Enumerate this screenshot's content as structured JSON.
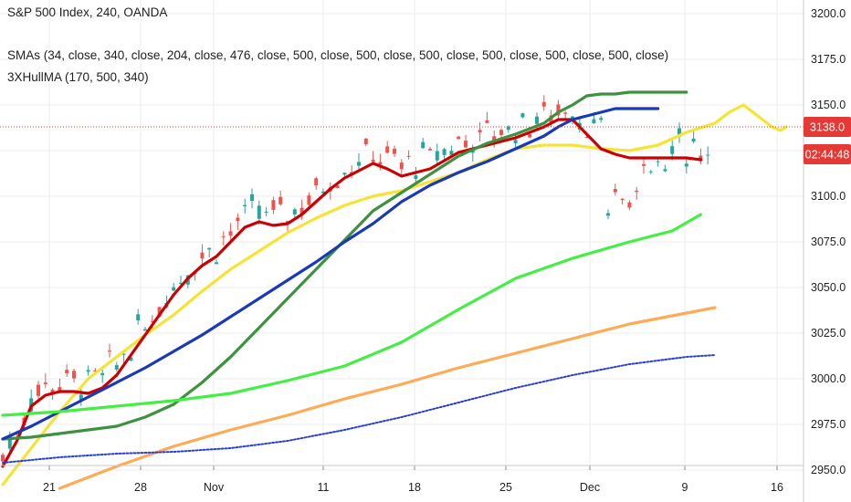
{
  "chart_data": {
    "type": "line",
    "title": "S&P 500 Index, 240, OANDA",
    "indicators": [
      "SMAs (34, close, 340, close, 204, close, 476, close, 500, close, 500, close, 500, close, 500, close, 500, close, 500, close)",
      "3XHullMA (170, 500, 340)"
    ],
    "ylim": [
      2950,
      3210
    ],
    "y_ticks": [
      "3200.0",
      "3175.0",
      "3150.0",
      "3125.0",
      "3100.0",
      "3075.0",
      "3050.0",
      "3025.0",
      "3000.0",
      "2975.0",
      "2950.0"
    ],
    "x_ticks": [
      "21",
      "28",
      "Nov",
      "11",
      "18",
      "25",
      "Dec",
      "9",
      "16"
    ],
    "last_price": "3138.0",
    "countdown": "02:44:48",
    "grid": true,
    "legend_position": "top-left",
    "colors": {
      "price_tag": "#e53935",
      "countdown_tag": "#e53935",
      "candle_up": "#26a69a",
      "candle_down": "#ef5350"
    },
    "series": [
      {
        "color": "#f5e335",
        "points": [
          [
            0,
            2942
          ],
          [
            20,
            2962
          ],
          [
            40,
            2982
          ],
          [
            60,
            3000
          ],
          [
            80,
            3012
          ],
          [
            100,
            3024
          ],
          [
            120,
            3035
          ],
          [
            140,
            3048
          ],
          [
            160,
            3060
          ],
          [
            180,
            3070
          ],
          [
            200,
            3080
          ],
          [
            220,
            3088
          ],
          [
            240,
            3095
          ],
          [
            260,
            3100
          ],
          [
            280,
            3103
          ],
          [
            300,
            3108
          ],
          [
            320,
            3113
          ],
          [
            340,
            3120
          ],
          [
            360,
            3126
          ],
          [
            380,
            3128
          ],
          [
            400,
            3128
          ],
          [
            420,
            3126
          ],
          [
            440,
            3125
          ],
          [
            460,
            3128
          ],
          [
            480,
            3135
          ],
          [
            500,
            3140
          ],
          [
            510,
            3146
          ],
          [
            520,
            3150
          ],
          [
            530,
            3144
          ],
          [
            540,
            3138
          ],
          [
            546,
            3136
          ],
          [
            550,
            3138
          ]
        ]
      },
      {
        "color": "#cc0000",
        "points": [
          [
            0,
            2952
          ],
          [
            10,
            2966
          ],
          [
            20,
            2985
          ],
          [
            30,
            2991
          ],
          [
            40,
            2993
          ],
          [
            50,
            2993
          ],
          [
            60,
            2992
          ],
          [
            70,
            2995
          ],
          [
            80,
            3002
          ],
          [
            90,
            3013
          ],
          [
            100,
            3024
          ],
          [
            110,
            3035
          ],
          [
            120,
            3046
          ],
          [
            130,
            3055
          ],
          [
            140,
            3062
          ],
          [
            150,
            3067
          ],
          [
            160,
            3075
          ],
          [
            170,
            3083
          ],
          [
            180,
            3086
          ],
          [
            190,
            3084
          ],
          [
            200,
            3085
          ],
          [
            210,
            3090
          ],
          [
            220,
            3097
          ],
          [
            230,
            3104
          ],
          [
            240,
            3110
          ],
          [
            250,
            3114
          ],
          [
            260,
            3118
          ],
          [
            270,
            3115
          ],
          [
            280,
            3111
          ],
          [
            290,
            3113
          ],
          [
            300,
            3115
          ],
          [
            320,
            3124
          ],
          [
            340,
            3128
          ],
          [
            360,
            3132
          ],
          [
            380,
            3138
          ],
          [
            390,
            3142
          ],
          [
            400,
            3142
          ],
          [
            410,
            3134
          ],
          [
            420,
            3126
          ],
          [
            430,
            3123
          ],
          [
            440,
            3121
          ],
          [
            450,
            3121
          ],
          [
            460,
            3121
          ],
          [
            470,
            3121
          ],
          [
            480,
            3121
          ],
          [
            490,
            3120
          ]
        ]
      },
      {
        "color": "#3d9140",
        "points": [
          [
            0,
            2967
          ],
          [
            20,
            2968
          ],
          [
            40,
            2970
          ],
          [
            60,
            2972
          ],
          [
            80,
            2974
          ],
          [
            100,
            2979
          ],
          [
            120,
            2986
          ],
          [
            140,
            2998
          ],
          [
            160,
            3012
          ],
          [
            180,
            3028
          ],
          [
            200,
            3044
          ],
          [
            220,
            3060
          ],
          [
            240,
            3076
          ],
          [
            260,
            3092
          ],
          [
            280,
            3102
          ],
          [
            300,
            3112
          ],
          [
            320,
            3122
          ],
          [
            340,
            3129
          ],
          [
            360,
            3134
          ],
          [
            380,
            3140
          ],
          [
            390,
            3146
          ],
          [
            400,
            3150
          ],
          [
            410,
            3155
          ],
          [
            420,
            3156
          ],
          [
            430,
            3156
          ],
          [
            440,
            3157
          ],
          [
            450,
            3157
          ],
          [
            460,
            3157
          ],
          [
            470,
            3157
          ],
          [
            480,
            3157
          ]
        ]
      },
      {
        "color": "#1939b7",
        "points": [
          [
            0,
            2967
          ],
          [
            20,
            2974
          ],
          [
            40,
            2982
          ],
          [
            60,
            2990
          ],
          [
            80,
            2998
          ],
          [
            100,
            3006
          ],
          [
            120,
            3015
          ],
          [
            140,
            3024
          ],
          [
            160,
            3034
          ],
          [
            180,
            3044
          ],
          [
            200,
            3054
          ],
          [
            220,
            3064
          ],
          [
            240,
            3075
          ],
          [
            260,
            3085
          ],
          [
            280,
            3097
          ],
          [
            300,
            3106
          ],
          [
            320,
            3113
          ],
          [
            340,
            3119
          ],
          [
            360,
            3126
          ],
          [
            380,
            3133
          ],
          [
            390,
            3138
          ],
          [
            400,
            3142
          ],
          [
            410,
            3144
          ],
          [
            420,
            3146
          ],
          [
            430,
            3148
          ],
          [
            440,
            3148
          ],
          [
            450,
            3148
          ],
          [
            460,
            3148
          ]
        ]
      },
      {
        "color": "#44ee44",
        "points": [
          [
            0,
            2980
          ],
          [
            40,
            2982
          ],
          [
            80,
            2985
          ],
          [
            120,
            2988
          ],
          [
            160,
            2992
          ],
          [
            200,
            2999
          ],
          [
            240,
            3007
          ],
          [
            280,
            3020
          ],
          [
            320,
            3038
          ],
          [
            360,
            3055
          ],
          [
            400,
            3066
          ],
          [
            440,
            3075
          ],
          [
            470,
            3081
          ],
          [
            490,
            3090
          ]
        ]
      },
      {
        "color": "#ffaa55",
        "points": [
          [
            40,
            2940
          ],
          [
            80,
            2952
          ],
          [
            120,
            2963
          ],
          [
            160,
            2972
          ],
          [
            200,
            2980
          ],
          [
            240,
            2989
          ],
          [
            280,
            2997
          ],
          [
            320,
            3006
          ],
          [
            360,
            3014
          ],
          [
            400,
            3022
          ],
          [
            440,
            3030
          ],
          [
            480,
            3036
          ],
          [
            500,
            3039
          ]
        ]
      },
      {
        "color": "#2b3fd0",
        "points": [
          [
            0,
            2954
          ],
          [
            40,
            2957
          ],
          [
            80,
            2959
          ],
          [
            120,
            2960
          ],
          [
            160,
            2962
          ],
          [
            200,
            2966
          ],
          [
            240,
            2972
          ],
          [
            280,
            2979
          ],
          [
            320,
            2987
          ],
          [
            360,
            2995
          ],
          [
            400,
            3002
          ],
          [
            440,
            3008
          ],
          [
            480,
            3012
          ],
          [
            500,
            3013
          ]
        ]
      }
    ],
    "candles": {
      "description": "4-hour OHLC candles around the SMA lines",
      "up_color": "#26a69a",
      "down_color": "#ef5350"
    }
  }
}
